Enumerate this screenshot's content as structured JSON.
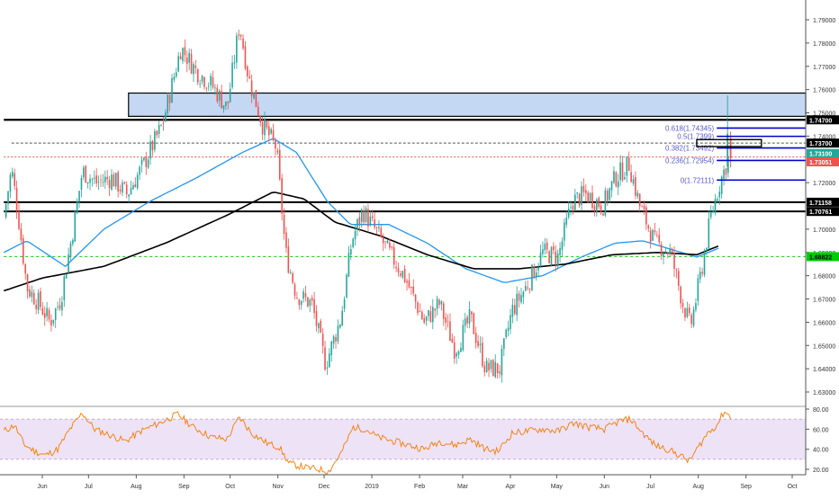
{
  "chart_data": {
    "type": "candlestick",
    "price_axis": {
      "range": [
        1.625,
        1.795
      ],
      "ticks": [
        "1.79000",
        "1.78000",
        "1.77000",
        "1.76000",
        "1.75000",
        "1.74000",
        "1.72000",
        "1.70000",
        "1.69000",
        "1.68000",
        "1.67000",
        "1.66000",
        "1.65000",
        "1.64000",
        "1.63000"
      ]
    },
    "time_axis": {
      "labels": [
        {
          "label": "Jun",
          "day": 0
        },
        {
          "label": "Jul",
          "day": 30
        },
        {
          "label": "Aug",
          "day": 61
        },
        {
          "label": "Sep",
          "day": 92
        },
        {
          "label": "Oct",
          "day": 122
        },
        {
          "label": "Nov",
          "day": 153
        },
        {
          "label": "Dec",
          "day": 183
        },
        {
          "label": "2019",
          "day": 214
        },
        {
          "label": "Feb",
          "day": 245
        },
        {
          "label": "Mar",
          "day": 273
        },
        {
          "label": "Apr",
          "day": 304
        },
        {
          "label": "May",
          "day": 334
        },
        {
          "label": "Jun",
          "day": 365
        },
        {
          "label": "Jul",
          "day": 395
        },
        {
          "label": "Aug",
          "day": 426
        },
        {
          "label": "Sep",
          "day": 457
        },
        {
          "label": "Oct",
          "day": 487
        }
      ]
    },
    "price_path": [
      {
        "day": -25,
        "price": 1.705
      },
      {
        "day": -20,
        "price": 1.726
      },
      {
        "day": -16,
        "price": 1.708
      },
      {
        "day": -10,
        "price": 1.675
      },
      {
        "day": -2,
        "price": 1.668
      },
      {
        "day": 5,
        "price": 1.66
      },
      {
        "day": 12,
        "price": 1.67
      },
      {
        "day": 20,
        "price": 1.7
      },
      {
        "day": 26,
        "price": 1.725
      },
      {
        "day": 35,
        "price": 1.72
      },
      {
        "day": 45,
        "price": 1.722
      },
      {
        "day": 55,
        "price": 1.715
      },
      {
        "day": 66,
        "price": 1.728
      },
      {
        "day": 78,
        "price": 1.745
      },
      {
        "day": 90,
        "price": 1.778
      },
      {
        "day": 100,
        "price": 1.768
      },
      {
        "day": 110,
        "price": 1.762
      },
      {
        "day": 120,
        "price": 1.752
      },
      {
        "day": 128,
        "price": 1.788
      },
      {
        "day": 134,
        "price": 1.765
      },
      {
        "day": 143,
        "price": 1.745
      },
      {
        "day": 152,
        "price": 1.735
      },
      {
        "day": 158,
        "price": 1.69
      },
      {
        "day": 165,
        "price": 1.672
      },
      {
        "day": 175,
        "price": 1.668
      },
      {
        "day": 184,
        "price": 1.642
      },
      {
        "day": 194,
        "price": 1.662
      },
      {
        "day": 201,
        "price": 1.695
      },
      {
        "day": 208,
        "price": 1.708
      },
      {
        "day": 216,
        "price": 1.7
      },
      {
        "day": 225,
        "price": 1.69
      },
      {
        "day": 235,
        "price": 1.68
      },
      {
        "day": 248,
        "price": 1.66
      },
      {
        "day": 258,
        "price": 1.668
      },
      {
        "day": 268,
        "price": 1.648
      },
      {
        "day": 278,
        "price": 1.662
      },
      {
        "day": 288,
        "price": 1.64
      },
      {
        "day": 297,
        "price": 1.64
      },
      {
        "day": 305,
        "price": 1.665
      },
      {
        "day": 314,
        "price": 1.675
      },
      {
        "day": 325,
        "price": 1.69
      },
      {
        "day": 335,
        "price": 1.688
      },
      {
        "day": 344,
        "price": 1.712
      },
      {
        "day": 353,
        "price": 1.715
      },
      {
        "day": 364,
        "price": 1.71
      },
      {
        "day": 372,
        "price": 1.722
      },
      {
        "day": 381,
        "price": 1.728
      },
      {
        "day": 388,
        "price": 1.71
      },
      {
        "day": 398,
        "price": 1.694
      },
      {
        "day": 408,
        "price": 1.69
      },
      {
        "day": 416,
        "price": 1.668
      },
      {
        "day": 421,
        "price": 1.658
      },
      {
        "day": 428,
        "price": 1.682
      },
      {
        "day": 434,
        "price": 1.705
      },
      {
        "day": 440,
        "price": 1.72
      },
      {
        "day": 446,
        "price": 1.731
      }
    ],
    "sma_blue": [
      {
        "day": -25,
        "price": 1.69
      },
      {
        "day": -10,
        "price": 1.695
      },
      {
        "day": 15,
        "price": 1.684
      },
      {
        "day": 40,
        "price": 1.7
      },
      {
        "day": 70,
        "price": 1.712
      },
      {
        "day": 100,
        "price": 1.722
      },
      {
        "day": 130,
        "price": 1.733
      },
      {
        "day": 150,
        "price": 1.739
      },
      {
        "day": 165,
        "price": 1.733
      },
      {
        "day": 185,
        "price": 1.712
      },
      {
        "day": 200,
        "price": 1.702
      },
      {
        "day": 225,
        "price": 1.702
      },
      {
        "day": 250,
        "price": 1.694
      },
      {
        "day": 275,
        "price": 1.683
      },
      {
        "day": 300,
        "price": 1.677
      },
      {
        "day": 325,
        "price": 1.68
      },
      {
        "day": 350,
        "price": 1.688
      },
      {
        "day": 372,
        "price": 1.694
      },
      {
        "day": 390,
        "price": 1.695
      },
      {
        "day": 410,
        "price": 1.691
      },
      {
        "day": 425,
        "price": 1.688
      },
      {
        "day": 440,
        "price": 1.692
      }
    ],
    "sma_black": [
      {
        "day": -25,
        "price": 1.6735
      },
      {
        "day": 0,
        "price": 1.679
      },
      {
        "day": 40,
        "price": 1.684
      },
      {
        "day": 80,
        "price": 1.694
      },
      {
        "day": 120,
        "price": 1.706
      },
      {
        "day": 150,
        "price": 1.716
      },
      {
        "day": 170,
        "price": 1.713
      },
      {
        "day": 190,
        "price": 1.703
      },
      {
        "day": 220,
        "price": 1.697
      },
      {
        "day": 250,
        "price": 1.689
      },
      {
        "day": 280,
        "price": 1.683
      },
      {
        "day": 310,
        "price": 1.683
      },
      {
        "day": 340,
        "price": 1.685
      },
      {
        "day": 370,
        "price": 1.689
      },
      {
        "day": 400,
        "price": 1.69
      },
      {
        "day": 425,
        "price": 1.689
      },
      {
        "day": 440,
        "price": 1.693
      }
    ],
    "supply_zone": {
      "from_day": 56,
      "to_day": 525,
      "top": 1.7585,
      "bottom": 1.7485
    },
    "horizontal_levels": [
      {
        "price": 1.747,
        "label": "1.74700",
        "style": "black-thick",
        "from_day": -25
      },
      {
        "price": 1.737,
        "label": "1.73700",
        "style": "gray-dashed",
        "from_day": -20
      },
      {
        "price": 1.731,
        "label": "1.73100",
        "style": "red-dotted",
        "from_day": -25
      },
      {
        "price": 1.7305,
        "label": "1.73051",
        "style": "red-tag",
        "from_day": -25
      },
      {
        "price": 1.71158,
        "label": "1.71158",
        "style": "black",
        "from_day": -25
      },
      {
        "price": 1.70761,
        "label": "1.70761",
        "style": "black",
        "from_day": -25
      },
      {
        "price": 1.6882,
        "label": "1.68822",
        "style": "green-dashed",
        "from_day": -25
      }
    ],
    "fibonacci": [
      {
        "label": "0.618(1.74345)",
        "price": 1.74345
      },
      {
        "label": "0.5(1.7399)",
        "price": 1.7399
      },
      {
        "label": "0.382(1.73492)",
        "price": 1.73492
      },
      {
        "label": "0.236(1.72954)",
        "price": 1.72954
      },
      {
        "label": "0(1.72111)",
        "price": 1.72111
      }
    ],
    "fib_range_days": [
      438,
      526
    ],
    "fib_box": {
      "from_day": 425,
      "to_day": 467,
      "top": 1.7385,
      "bottom": 1.7355
    },
    "rsi": {
      "range": [
        14,
        82
      ],
      "ticks": [
        "80.00",
        "60.00",
        "40.00",
        "20.00"
      ],
      "band": [
        30,
        70
      ],
      "values": [
        {
          "day": -25,
          "v": 58
        },
        {
          "day": -18,
          "v": 64
        },
        {
          "day": -12,
          "v": 45
        },
        {
          "day": -5,
          "v": 38
        },
        {
          "day": 2,
          "v": 34
        },
        {
          "day": 10,
          "v": 40
        },
        {
          "day": 18,
          "v": 60
        },
        {
          "day": 26,
          "v": 76
        },
        {
          "day": 34,
          "v": 60
        },
        {
          "day": 44,
          "v": 54
        },
        {
          "day": 54,
          "v": 48
        },
        {
          "day": 64,
          "v": 58
        },
        {
          "day": 76,
          "v": 66
        },
        {
          "day": 88,
          "v": 75
        },
        {
          "day": 98,
          "v": 62
        },
        {
          "day": 110,
          "v": 52
        },
        {
          "day": 120,
          "v": 50
        },
        {
          "day": 128,
          "v": 72
        },
        {
          "day": 136,
          "v": 56
        },
        {
          "day": 146,
          "v": 46
        },
        {
          "day": 154,
          "v": 42
        },
        {
          "day": 160,
          "v": 26
        },
        {
          "day": 170,
          "v": 22
        },
        {
          "day": 180,
          "v": 20
        },
        {
          "day": 186,
          "v": 18
        },
        {
          "day": 194,
          "v": 36
        },
        {
          "day": 202,
          "v": 62
        },
        {
          "day": 210,
          "v": 60
        },
        {
          "day": 218,
          "v": 52
        },
        {
          "day": 228,
          "v": 48
        },
        {
          "day": 238,
          "v": 44
        },
        {
          "day": 248,
          "v": 40
        },
        {
          "day": 258,
          "v": 48
        },
        {
          "day": 268,
          "v": 44
        },
        {
          "day": 278,
          "v": 50
        },
        {
          "day": 288,
          "v": 40
        },
        {
          "day": 296,
          "v": 38
        },
        {
          "day": 305,
          "v": 56
        },
        {
          "day": 315,
          "v": 58
        },
        {
          "day": 325,
          "v": 60
        },
        {
          "day": 335,
          "v": 58
        },
        {
          "day": 345,
          "v": 66
        },
        {
          "day": 355,
          "v": 62
        },
        {
          "day": 365,
          "v": 60
        },
        {
          "day": 375,
          "v": 68
        },
        {
          "day": 382,
          "v": 70
        },
        {
          "day": 390,
          "v": 56
        },
        {
          "day": 398,
          "v": 44
        },
        {
          "day": 406,
          "v": 40
        },
        {
          "day": 414,
          "v": 34
        },
        {
          "day": 420,
          "v": 28
        },
        {
          "day": 426,
          "v": 42
        },
        {
          "day": 432,
          "v": 56
        },
        {
          "day": 438,
          "v": 64
        },
        {
          "day": 443,
          "v": 78
        },
        {
          "day": 447,
          "v": 72
        }
      ]
    },
    "colors": {
      "up": "#26a69a",
      "down": "#ef5350",
      "sma_blue": "#2196f3",
      "sma_black": "#000000",
      "zone_fill": "#c5d8f3",
      "fib": "#0000cc",
      "fib_text": "#5a5ad6",
      "rsi_line": "#f57c00",
      "rsi_band": "#eee2f7",
      "green_level": "#00cc00",
      "red_level": "#ef5350"
    }
  }
}
